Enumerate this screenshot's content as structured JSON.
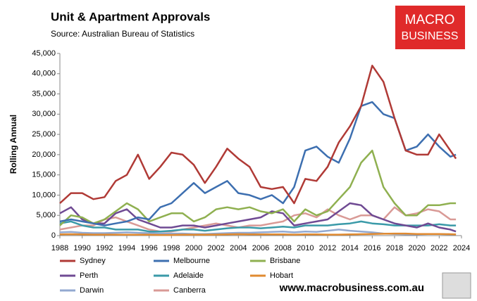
{
  "chart_data": {
    "type": "line",
    "title": "Unit & Apartment Approvals",
    "subtitle": "Source:   Australian Bureau of Statistics",
    "y_label": "Rolling Annual",
    "logo": [
      "MACRO",
      "BUSINESS"
    ],
    "footer": "www.macrobusiness.com.au",
    "xlim": [
      1988,
      2024
    ],
    "xticks": [
      1988,
      1990,
      1992,
      1994,
      1996,
      1998,
      2000,
      2002,
      2004,
      2006,
      2008,
      2010,
      2012,
      2014,
      2016,
      2018,
      2020,
      2022,
      2024
    ],
    "ylim": [
      0,
      45000
    ],
    "yticks": [
      0,
      {
        "value": 5000,
        "label": "5,000"
      },
      {
        "value": 10000,
        "label": "10,000"
      },
      {
        "value": 15000,
        "label": "15,000"
      },
      {
        "value": 20000,
        "label": "20,000"
      },
      {
        "value": 25000,
        "label": "25,000"
      },
      {
        "value": 30000,
        "label": "30,000"
      },
      {
        "value": 35000,
        "label": "35,000"
      },
      {
        "value": 40000,
        "label": "40,000"
      },
      {
        "value": 45000,
        "label": "45,000"
      }
    ],
    "grid": false,
    "x": [
      1988,
      1989,
      1990,
      1991,
      1992,
      1993,
      1994,
      1995,
      1996,
      1997,
      1998,
      1999,
      2000,
      2001,
      2002,
      2003,
      2004,
      2005,
      2006,
      2007,
      2008,
      2009,
      2010,
      2011,
      2012,
      2013,
      2014,
      2015,
      2016,
      2017,
      2018,
      2019,
      2020,
      2021,
      2022,
      2023,
      2023.5
    ],
    "series": [
      {
        "name": "Sydney",
        "color": "#b03a36",
        "values": [
          8000,
          10500,
          10500,
          9000,
          9500,
          13500,
          15000,
          20000,
          14000,
          17000,
          20500,
          20000,
          17500,
          13000,
          17000,
          21500,
          19000,
          17000,
          12000,
          11500,
          12000,
          8000,
          14000,
          13500,
          17000,
          23000,
          27000,
          32000,
          42000,
          38000,
          29000,
          21000,
          20000,
          20000,
          25000,
          21000,
          19000
        ]
      },
      {
        "name": "Melbourne",
        "color": "#3d6fb0",
        "values": [
          3500,
          4000,
          3500,
          3000,
          2500,
          3000,
          3500,
          4500,
          4000,
          7000,
          8000,
          10500,
          13000,
          10500,
          12000,
          13500,
          10500,
          10000,
          9000,
          10000,
          8000,
          12000,
          21000,
          22000,
          19500,
          18000,
          24000,
          32000,
          33000,
          30000,
          29000,
          21000,
          22000,
          25000,
          22000,
          19500,
          20000
        ]
      },
      {
        "name": "Brisbane",
        "color": "#8fb050",
        "values": [
          2500,
          5000,
          4500,
          3000,
          4000,
          6000,
          8000,
          6500,
          3500,
          4500,
          5500,
          5500,
          3500,
          4500,
          6500,
          7000,
          6500,
          7000,
          6000,
          5500,
          6500,
          3500,
          6500,
          5000,
          6000,
          9000,
          12000,
          18000,
          21000,
          12000,
          8000,
          5000,
          5000,
          7500,
          7500,
          8000,
          8000
        ]
      },
      {
        "name": "Perth",
        "color": "#6f4a93",
        "values": [
          5500,
          7000,
          4000,
          3000,
          3000,
          5500,
          6500,
          4000,
          3000,
          2000,
          2000,
          2500,
          2500,
          2000,
          2500,
          3000,
          3500,
          4000,
          4500,
          6000,
          5500,
          2500,
          3000,
          3500,
          4000,
          6000,
          8000,
          7500,
          5000,
          4000,
          3000,
          2500,
          2000,
          3000,
          2000,
          1500,
          1000
        ]
      },
      {
        "name": "Adelaide",
        "color": "#3a9aa8",
        "values": [
          3000,
          3500,
          2500,
          2000,
          2000,
          1500,
          1500,
          1500,
          1000,
          1000,
          1200,
          1500,
          1500,
          1200,
          1500,
          1800,
          2000,
          2000,
          1800,
          2000,
          2200,
          2000,
          2500,
          2500,
          2500,
          2800,
          3000,
          3500,
          3000,
          2800,
          2500,
          2500,
          2500,
          2500,
          2800,
          2500,
          2500
        ]
      },
      {
        "name": "Hobart",
        "color": "#e08a30",
        "values": [
          300,
          350,
          300,
          250,
          250,
          250,
          200,
          200,
          200,
          150,
          150,
          200,
          200,
          200,
          250,
          300,
          350,
          300,
          300,
          300,
          300,
          250,
          300,
          300,
          250,
          250,
          300,
          350,
          400,
          450,
          500,
          500,
          400,
          400,
          400,
          350,
          300
        ]
      },
      {
        "name": "Darwin",
        "color": "#93a9d0",
        "values": [
          800,
          900,
          700,
          600,
          600,
          700,
          800,
          700,
          600,
          500,
          500,
          500,
          400,
          400,
          500,
          600,
          700,
          700,
          800,
          900,
          1000,
          800,
          1000,
          900,
          1200,
          1500,
          1200,
          1000,
          800,
          500,
          400,
          300,
          300,
          400,
          400,
          300,
          300
        ]
      },
      {
        "name": "Canberra",
        "color": "#d99a96",
        "values": [
          1500,
          2000,
          2500,
          2500,
          4000,
          4500,
          3500,
          2500,
          1500,
          1000,
          1000,
          1500,
          2000,
          2500,
          3000,
          2500,
          2000,
          2500,
          2500,
          3000,
          3500,
          5000,
          5500,
          4500,
          6500,
          5000,
          4000,
          5000,
          5000,
          4000,
          7000,
          5000,
          5500,
          6500,
          6000,
          4000,
          4000
        ]
      }
    ]
  }
}
